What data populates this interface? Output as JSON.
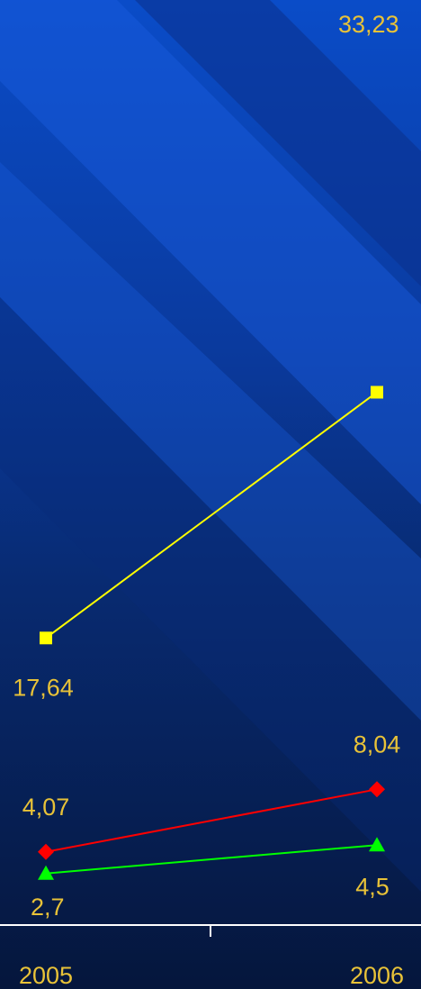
{
  "chart_data": {
    "type": "line",
    "categories": [
      "2005",
      "2006"
    ],
    "series": [
      {
        "values": [
          17.64,
          33.23
        ],
        "labels": [
          "17,64",
          "33,23"
        ],
        "color": "#ffff00",
        "marker": "square"
      },
      {
        "values": [
          4.07,
          8.04
        ],
        "labels": [
          "4,07",
          "8,04"
        ],
        "color": "#ff0000",
        "marker": "diamond"
      },
      {
        "values": [
          2.7,
          4.5
        ],
        "labels": [
          "2,7",
          "4,5"
        ],
        "color": "#00ff00",
        "marker": "triangle"
      }
    ],
    "label_color": "#e8c238",
    "axis_color": "#ffffff",
    "grid": false,
    "legend": "none"
  }
}
